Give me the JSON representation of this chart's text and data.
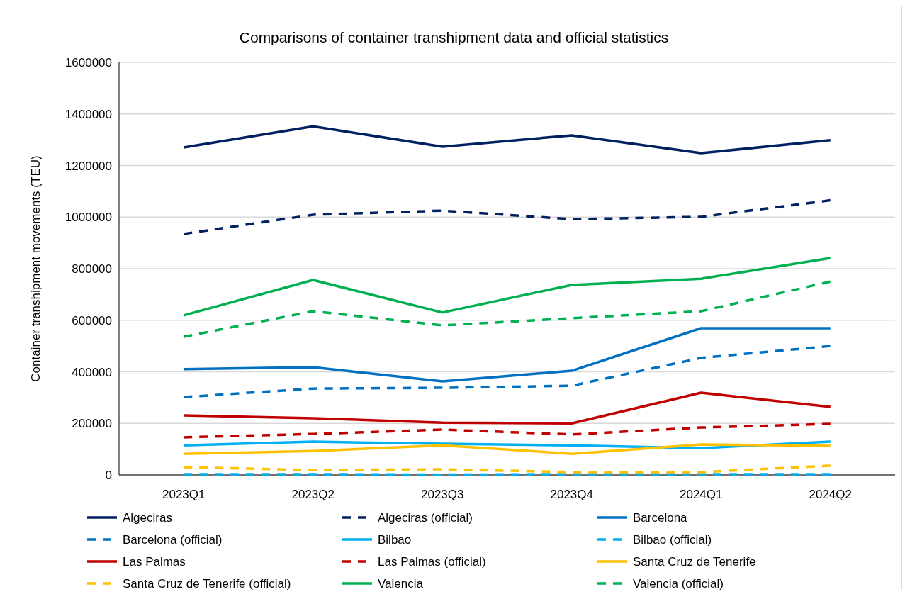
{
  "chart_data": {
    "type": "line",
    "title": "Comparisons of container transhipment data and official statistics",
    "ylabel": "Container transhipment movements (TEU)",
    "categories": [
      "2023Q1",
      "2023Q2",
      "2023Q3",
      "2023Q4",
      "2024Q1",
      "2024Q2"
    ],
    "ylim": [
      0,
      1600000
    ],
    "yticks": [
      0,
      200000,
      400000,
      600000,
      800000,
      1000000,
      1200000,
      1400000,
      1600000
    ],
    "grid": "y",
    "legend": "bottom",
    "marker": "none",
    "series": [
      {
        "name": "Algeciras",
        "color": "#002060",
        "line_style": "solid",
        "values": [
          1270000,
          1352000,
          1273000,
          1317000,
          1248000,
          1298000
        ]
      },
      {
        "name": "Algeciras (official)",
        "color": "#002060",
        "line_style": "dashed",
        "values": [
          935000,
          1009000,
          1025000,
          992000,
          1001000,
          1065000
        ]
      },
      {
        "name": "Barcelona",
        "color": "#0070c0",
        "line_style": "solid",
        "values": [
          410000,
          418000,
          363000,
          404000,
          569000,
          569000
        ]
      },
      {
        "name": "Barcelona (official)",
        "color": "#0070c0",
        "line_style": "dashed",
        "values": [
          302000,
          335000,
          338000,
          346000,
          454000,
          500000
        ]
      },
      {
        "name": "Bilbao",
        "color": "#00b0f0",
        "line_style": "solid",
        "values": [
          115000,
          129000,
          121000,
          115000,
          104000,
          129000
        ]
      },
      {
        "name": "Bilbao (official)",
        "color": "#00b0f0",
        "line_style": "dashed",
        "values": [
          3000,
          3000,
          1000,
          3000,
          3000,
          3000
        ]
      },
      {
        "name": "Las Palmas",
        "color": "#c00000",
        "line_style": "solid",
        "values": [
          231000,
          220000,
          203000,
          200000,
          319000,
          264000
        ]
      },
      {
        "name": "Las Palmas (official)",
        "color": "#c00000",
        "line_style": "dashed",
        "values": [
          146000,
          159000,
          176000,
          157000,
          184000,
          198000
        ]
      },
      {
        "name": "Santa Cruz de Tenerife",
        "color": "#ffc000",
        "line_style": "solid",
        "values": [
          82000,
          93000,
          115000,
          82000,
          118000,
          113000
        ]
      },
      {
        "name": "Santa Cruz de Tenerife (official)",
        "color": "#ffc000",
        "line_style": "dashed",
        "values": [
          30000,
          19000,
          22000,
          11000,
          11000,
          36000
        ]
      },
      {
        "name": "Valencia",
        "color": "#00b050",
        "line_style": "solid",
        "values": [
          619000,
          756000,
          630000,
          737000,
          761000,
          841000
        ]
      },
      {
        "name": "Valencia (official)",
        "color": "#00b050",
        "line_style": "dashed",
        "values": [
          536000,
          635000,
          580000,
          608000,
          635000,
          750000
        ]
      }
    ]
  }
}
